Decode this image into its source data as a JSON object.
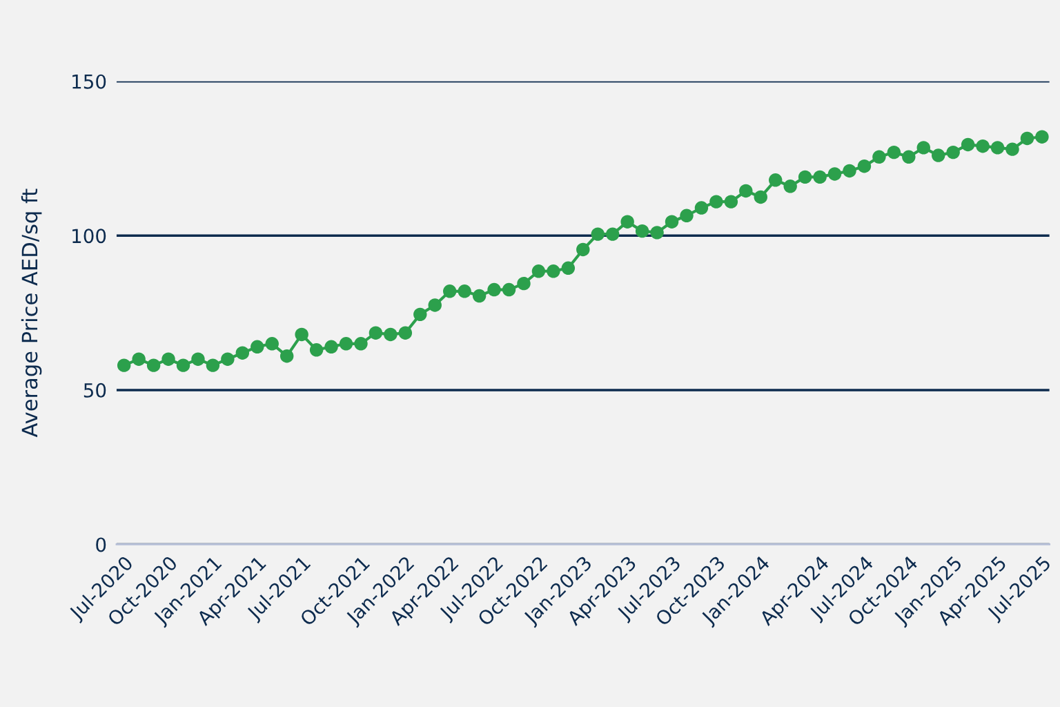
{
  "chart_data": {
    "type": "line",
    "ylabel": "Average Price AED/sq ft",
    "categories": [
      "Jul-2020",
      null,
      null,
      "Oct-2020",
      null,
      null,
      "Jan-2021",
      null,
      null,
      "Apr-2021",
      null,
      null,
      "Jul-2021",
      null,
      null,
      null,
      "Oct-2021",
      null,
      null,
      "Jan-2022",
      null,
      null,
      "Apr-2022",
      null,
      null,
      "Jul-2022",
      null,
      null,
      "Oct-2022",
      null,
      null,
      "Jan-2023",
      null,
      null,
      "Apr-2023",
      null,
      null,
      "Jul-2023",
      null,
      null,
      "Oct-2023",
      null,
      null,
      "Jan-2024",
      null,
      null,
      null,
      "Apr-2024",
      null,
      null,
      "Jul-2024",
      null,
      null,
      "Oct-2024",
      null,
      null,
      "Jan-2025",
      null,
      null,
      "Apr-2025",
      null,
      null,
      "Jul-2025"
    ],
    "series": [
      {
        "color": "#2ca04c",
        "values": [
          58,
          60,
          58,
          60,
          58,
          60,
          58,
          60,
          62,
          64,
          65,
          61,
          68,
          63,
          64,
          65,
          65,
          68.5,
          68,
          68.5,
          74.5,
          77.5,
          82,
          82,
          80.5,
          82.5,
          82.5,
          84.5,
          88.5,
          88.5,
          89.5,
          95.5,
          100.5,
          100.5,
          104.5,
          101.5,
          101,
          104.5,
          106.5,
          109,
          111,
          111,
          114.5,
          112.5,
          118,
          116,
          119,
          119,
          120,
          121,
          122.5,
          125.5,
          127,
          125.5,
          128.5,
          126,
          127,
          129.5,
          129,
          128.5,
          128,
          131.5,
          132
        ]
      }
    ],
    "ylim": [
      0,
      150
    ],
    "yticks": [
      0,
      50,
      100,
      150
    ],
    "grid": "y",
    "marker": "circle",
    "line_style": "solid"
  }
}
